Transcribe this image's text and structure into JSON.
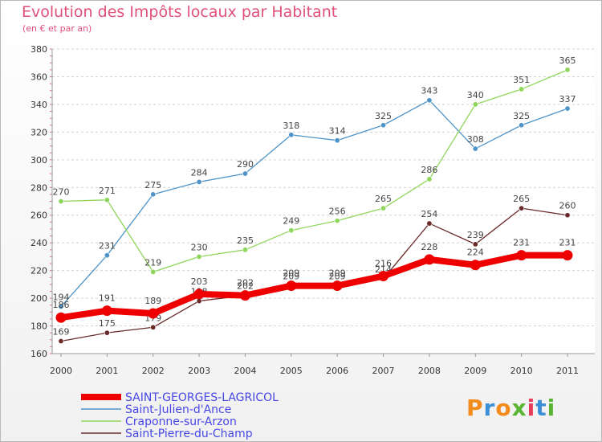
{
  "chart_data": {
    "type": "line",
    "title": "Evolution des Impôts locaux par Habitant",
    "subtitle": "(en € et par an)",
    "xlabel": "",
    "ylabel": "",
    "ylim": [
      160,
      380
    ],
    "yticks": [
      160,
      180,
      200,
      220,
      240,
      260,
      280,
      300,
      320,
      340,
      360,
      380
    ],
    "categories": [
      "2000",
      "2001",
      "2002",
      "2003",
      "2004",
      "2005",
      "2006",
      "2007",
      "2008",
      "2009",
      "2010",
      "2011"
    ],
    "series": [
      {
        "name": "Saint-Julien-d'Ance",
        "color": "#4f94c8",
        "values": [
          194,
          231,
          275,
          284,
          290,
          318,
          314,
          325,
          343,
          308,
          325,
          337
        ]
      },
      {
        "name": "Craponne-sur-Arzon",
        "color": "#8fd65c",
        "values": [
          270,
          271,
          219,
          230,
          235,
          249,
          256,
          265,
          286,
          340,
          351,
          365
        ]
      },
      {
        "name": "Saint-Pierre-du-Champ",
        "color": "#6a2a2a",
        "values": [
          169,
          175,
          179,
          198,
          202,
          209,
          209,
          214,
          254,
          239,
          265,
          260
        ]
      },
      {
        "name": "SAINT-GEORGES-LAGRICOL",
        "color": "#ee0000",
        "values": [
          186,
          191,
          189,
          203,
          202,
          209,
          209,
          216,
          228,
          224,
          231,
          231
        ]
      }
    ],
    "legend_order": [
      "SAINT-GEORGES-LAGRICOL",
      "Saint-Julien-d'Ance",
      "Craponne-sur-Arzon",
      "Saint-Pierre-du-Champ"
    ],
    "legend_position": "bottom-left"
  },
  "brand": {
    "logo_text": "Proxiti",
    "colors": [
      "#f28c1c",
      "#3b8fd6",
      "#f28c1c",
      "#5ab434",
      "#e83a5a",
      "#3b8fd6",
      "#5ab434"
    ]
  }
}
